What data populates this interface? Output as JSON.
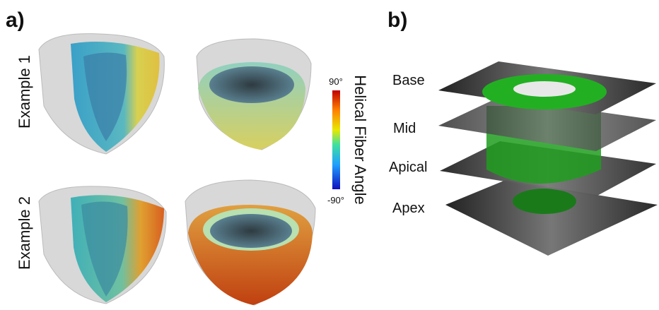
{
  "panel_a": {
    "label": "a)",
    "rows": [
      {
        "label": "Example 1"
      },
      {
        "label": "Example 2"
      }
    ],
    "colorbar": {
      "title": "Helical Fiber Angle",
      "max_label": "90°",
      "min_label": "-90°"
    }
  },
  "panel_b": {
    "label": "b)",
    "slices": [
      {
        "label": "Base"
      },
      {
        "label": "Mid"
      },
      {
        "label": "Apical"
      },
      {
        "label": "Apex"
      }
    ]
  }
}
